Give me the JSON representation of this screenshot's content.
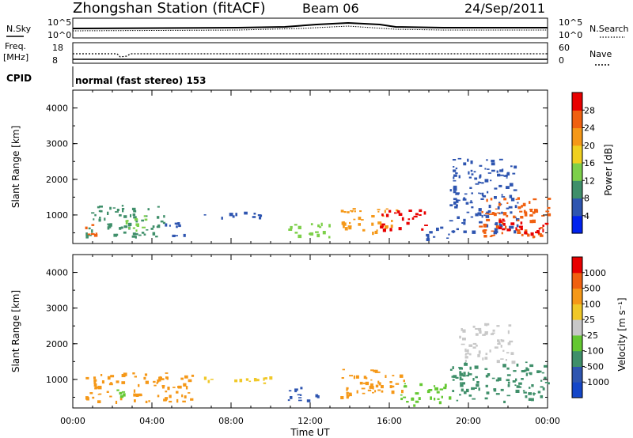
{
  "header": {
    "station": "Zhongshan Station (fitACF)",
    "beam": "Beam 06",
    "date": "24/Sep/2011"
  },
  "noise_panel": {
    "left_label": "N.Sky",
    "right_label": "N.Search",
    "left_ticks": [
      "10^5",
      "10^0"
    ],
    "right_ticks": [
      "10^5",
      "10^0"
    ]
  },
  "freq_panel": {
    "left_label_line1": "Freq.",
    "left_label_line2": "[MHz]",
    "right_label": "Nave",
    "left_ticks": [
      "18",
      "8"
    ],
    "right_ticks": [
      "60",
      "0"
    ]
  },
  "cpid": {
    "label": "CPID",
    "value": "normal (fast stereo) 153"
  },
  "chart_data": {
    "type": "heatmap",
    "x_axis": {
      "label": "Time UT",
      "ticks": [
        "00:00",
        "04:00",
        "08:00",
        "12:00",
        "16:00",
        "20:00",
        "00:00"
      ],
      "range_hours": [
        0,
        24
      ]
    },
    "panels": [
      {
        "name": "power",
        "ylabel": "Slant Range [km]",
        "yticks": [
          "1000",
          "2000",
          "3000",
          "4000"
        ],
        "ylim": [
          200,
          4500
        ],
        "colorbar_label": "Power [dB]",
        "colorbar_ticks": [
          "4",
          "8",
          "12",
          "16",
          "20",
          "24",
          "28"
        ],
        "colors": [
          "#0022ee",
          "#2e55b0",
          "#3f8f6a",
          "#7dd04a",
          "#f0d020",
          "#f59818",
          "#f06010",
          "#e80000"
        ],
        "regions": [
          {
            "t": [
              0.6,
              2.4
            ],
            "r": [
              400,
              1300
            ],
            "color": "#3f8f6a"
          },
          {
            "t": [
              2.4,
              4.6
            ],
            "r": [
              400,
              1300
            ],
            "color": "#3f8f6a"
          },
          {
            "t": [
              4.6,
              6.0
            ],
            "r": [
              420,
              800
            ],
            "color": "#2e55b0"
          },
          {
            "t": [
              0.6,
              1.2
            ],
            "r": [
              450,
              750
            ],
            "color": "#f06010"
          },
          {
            "t": [
              2.6,
              4.0
            ],
            "r": [
              500,
              1000
            ],
            "color": "#7dd04a"
          },
          {
            "t": [
              6.5,
              9.5
            ],
            "r": [
              900,
              1100
            ],
            "color": "#2e55b0"
          },
          {
            "t": [
              10.8,
              13.0
            ],
            "r": [
              400,
              800
            ],
            "color": "#7dd04a"
          },
          {
            "t": [
              13.5,
              16.5
            ],
            "r": [
              500,
              1200
            ],
            "color": "#f59818"
          },
          {
            "t": [
              15.5,
              17.8
            ],
            "r": [
              600,
              1200
            ],
            "color": "#e80000"
          },
          {
            "t": [
              17.8,
              19.0
            ],
            "r": [
              300,
              700
            ],
            "color": "#2e55b0"
          },
          {
            "t": [
              19.0,
              22.5
            ],
            "r": [
              500,
              2600
            ],
            "color": "#2e55b0"
          },
          {
            "t": [
              20.5,
              24.0
            ],
            "r": [
              400,
              1500
            ],
            "color": "#f06010"
          },
          {
            "t": [
              21.5,
              24.0
            ],
            "r": [
              400,
              900
            ],
            "color": "#e80000"
          }
        ]
      },
      {
        "name": "velocity",
        "ylabel": "Slant Range [km]",
        "yticks": [
          "1000",
          "2000",
          "3000",
          "4000"
        ],
        "ylim": [
          200,
          4500
        ],
        "colorbar_label": "Velocity [m s⁻¹]",
        "colorbar_ticks": [
          "1000",
          "500",
          "100",
          "25",
          "-25",
          "-100",
          "-500",
          "-1000"
        ],
        "colors": [
          "#1446c8",
          "#2e55b0",
          "#3f8f6a",
          "#64c832",
          "#c8c8c8",
          "#f0c828",
          "#f59818",
          "#f06010",
          "#e80000"
        ],
        "regions": [
          {
            "t": [
              0.6,
              6.0
            ],
            "r": [
              400,
              1200
            ],
            "color": "#f59818"
          },
          {
            "t": [
              2.2,
              3.0
            ],
            "r": [
              500,
              800
            ],
            "color": "#64c832"
          },
          {
            "t": [
              6.5,
              10.0
            ],
            "r": [
              900,
              1100
            ],
            "color": "#f0c828"
          },
          {
            "t": [
              10.8,
              12.5
            ],
            "r": [
              400,
              800
            ],
            "color": "#2e55b0"
          },
          {
            "t": [
              13.5,
              16.8
            ],
            "r": [
              500,
              1300
            ],
            "color": "#f59818"
          },
          {
            "t": [
              16.5,
              19.0
            ],
            "r": [
              300,
              900
            ],
            "color": "#64c832"
          },
          {
            "t": [
              19.0,
              24.0
            ],
            "r": [
              400,
              1500
            ],
            "color": "#3f8f6a"
          },
          {
            "t": [
              19.5,
              22.2
            ],
            "r": [
              1500,
              2600
            ],
            "color": "#c8c8c8"
          }
        ]
      }
    ]
  }
}
